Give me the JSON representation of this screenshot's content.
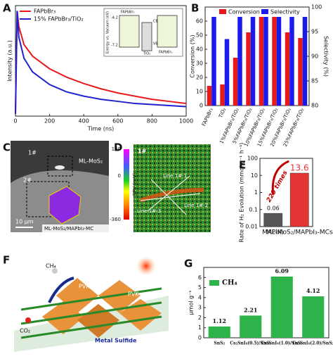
{
  "panel_labels": [
    "A",
    "B",
    "C",
    "D",
    "E",
    "F",
    "G"
  ],
  "chart_data": [
    {
      "type": "line",
      "xlabel": "Time (ns)",
      "ylabel": "Intensity (a.u.)",
      "x": [
        0,
        10,
        20,
        50,
        100,
        200,
        300,
        400,
        500,
        600,
        700,
        800,
        900,
        1000
      ],
      "xlim": [
        0,
        1000
      ],
      "xticks": [
        0,
        200,
        400,
        600,
        800,
        1000
      ],
      "ylim": [
        0,
        1.05
      ],
      "legend": "upper left",
      "series": [
        {
          "name": "FAPbBr₃",
          "color": "#e8191b",
          "values": [
            0.02,
            1.0,
            0.85,
            0.68,
            0.57,
            0.45,
            0.37,
            0.31,
            0.26,
            0.22,
            0.19,
            0.16,
            0.14,
            0.12
          ]
        },
        {
          "name": "15% FAPbBr₃/TiO₂",
          "color": "#2020d0",
          "values": [
            0.02,
            1.0,
            0.75,
            0.55,
            0.42,
            0.3,
            0.23,
            0.19,
            0.16,
            0.14,
            0.12,
            0.11,
            0.1,
            0.09
          ]
        }
      ]
    },
    {
      "type": "bar",
      "ylabel": "Conversion (%)",
      "y2label": "Selectivity (%)",
      "categories": [
        "FAPbBr₃",
        "TiO₂",
        "1%FAPbBr₃/TiO₂",
        "5%FAPbBr₃/TiO₂",
        "10%FAPbBr₃/TiO₂",
        "15%FAPbBr₃/TiO₂",
        "20%FAPbBr₃/TiO₂",
        "25%FAPbBr₃/TiO₂"
      ],
      "ylim": [
        0,
        70
      ],
      "yticks": [
        0,
        10,
        20,
        30,
        40,
        50,
        60
      ],
      "y2lim": [
        80,
        100
      ],
      "y2ticks": [
        80,
        85,
        90,
        95,
        100
      ],
      "legend": "upper",
      "series": [
        {
          "name": "Conversion",
          "color": "#e8191b",
          "values": [
            14,
            15,
            34,
            52,
            63,
            63,
            52,
            48
          ]
        },
        {
          "name": "Selectivity",
          "color": "#1a1aee",
          "axis": "y2",
          "values": [
            98,
            93.5,
            98,
            98,
            98,
            98,
            98,
            98
          ]
        }
      ]
    },
    {
      "type": "bar",
      "log": true,
      "ylabel": "Rate of H₂ Evolution (mmol g⁻¹ h⁻¹)",
      "categories": [
        "MAPbI₃",
        "ML-MoS₂/MAPbI₃-MCs"
      ],
      "values": [
        0.06,
        13.6
      ],
      "colors": [
        "#555555",
        "#e33333"
      ],
      "ylim": [
        0.01,
        100
      ],
      "yticks": [
        0.01,
        0.1,
        1,
        10,
        100
      ],
      "annotation": "220 times"
    },
    {
      "type": "bar",
      "ylabel": "μmol g⁻¹",
      "legend_label": "CH₄",
      "color": "#2db34a",
      "categories": [
        "SnS₂",
        "Cs₂SnI₆(0.5)/SnS₂",
        "Cs₂SnI₆(1.0)/SnS₂",
        "Cs₂SnI₆(2.0)/SnS₂"
      ],
      "values": [
        1.12,
        2.21,
        6.09,
        4.12
      ],
      "ylim": [
        0,
        7
      ],
      "yticks": [
        0,
        1,
        2,
        3,
        4,
        5,
        6
      ]
    }
  ],
  "inset_A": {
    "ylabel": "Energy vs. Vacuum (eV)",
    "levels": [
      "-4.2",
      "-7.2"
    ],
    "materials": [
      "FAPbBr₃",
      "TiO₂",
      "FAPbBr₃"
    ],
    "bands": [
      "CB",
      "VB"
    ]
  },
  "image_C": {
    "spots": [
      "1#",
      "2#"
    ],
    "label": "ML-MoS₂",
    "scale": "10 μm",
    "caption": "ML-MoS₂/MAPbI₃-MC"
  },
  "image_D": {
    "spot": "1#",
    "lines": [
      "Line 1#-1",
      "Line 1#-2",
      "Line 1#-3"
    ],
    "colorbar_label": "SPV (mV)",
    "colorbar_ticks": [
      "160",
      "0",
      "-360"
    ]
  },
  "image_F": {
    "labels": [
      "CH₄",
      "CO₂",
      "PVK",
      "PVK",
      "Metal Sulfide"
    ]
  }
}
